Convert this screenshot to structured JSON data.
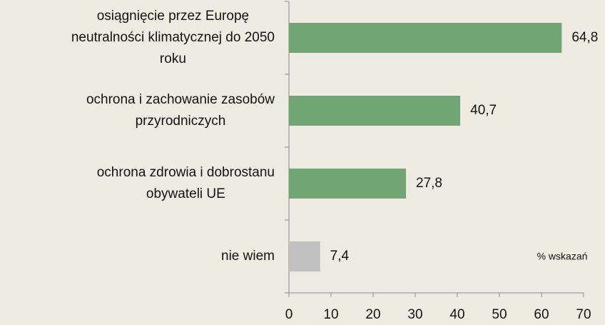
{
  "chart_data": {
    "type": "bar",
    "orientation": "horizontal",
    "categories": [
      "osiągnięcie przez Europę\nneutralności klimatycznej do 2050\nroku",
      "ochrona i zachowanie zasobów\nprzyrodniczych",
      "ochrona zdrowia i dobrostanu\nobywateli UE",
      "nie wiem"
    ],
    "values": [
      64.8,
      40.7,
      27.8,
      7.4
    ],
    "value_labels": [
      "64,8",
      "40,7",
      "27,8",
      "7,4"
    ],
    "colors": [
      "#72a575",
      "#72a575",
      "#72a575",
      "#c0c0c0"
    ],
    "xlim": [
      0,
      70
    ],
    "xticks": [
      0,
      10,
      20,
      30,
      40,
      50,
      60,
      70
    ],
    "annotation": "% wskazań"
  }
}
